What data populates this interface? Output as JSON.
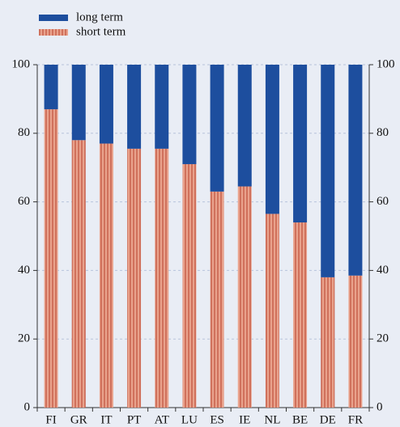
{
  "chart_data": {
    "type": "stacked_bar",
    "categories": [
      "FI",
      "GR",
      "IT",
      "PT",
      "AT",
      "LU",
      "ES",
      "IE",
      "NL",
      "BE",
      "DE",
      "FR"
    ],
    "series": [
      {
        "name": "long term",
        "color": "#1d4e9e",
        "values": [
          13,
          22,
          23,
          24.5,
          24.5,
          29,
          37,
          35.5,
          43.5,
          46,
          62,
          61.5
        ]
      },
      {
        "name": "short term",
        "color": "#e9a28c",
        "values": [
          87,
          78,
          77,
          75.5,
          75.5,
          71,
          63,
          64.5,
          56.5,
          54,
          38,
          38.5
        ]
      }
    ],
    "ylim": [
      0,
      100
    ],
    "yticks": [
      0,
      20,
      40,
      60,
      80,
      100
    ],
    "y2lim": [
      0,
      100
    ],
    "y2ticks": [
      0,
      20,
      40,
      60,
      80,
      100
    ],
    "grid": true,
    "legend": "top-left"
  }
}
